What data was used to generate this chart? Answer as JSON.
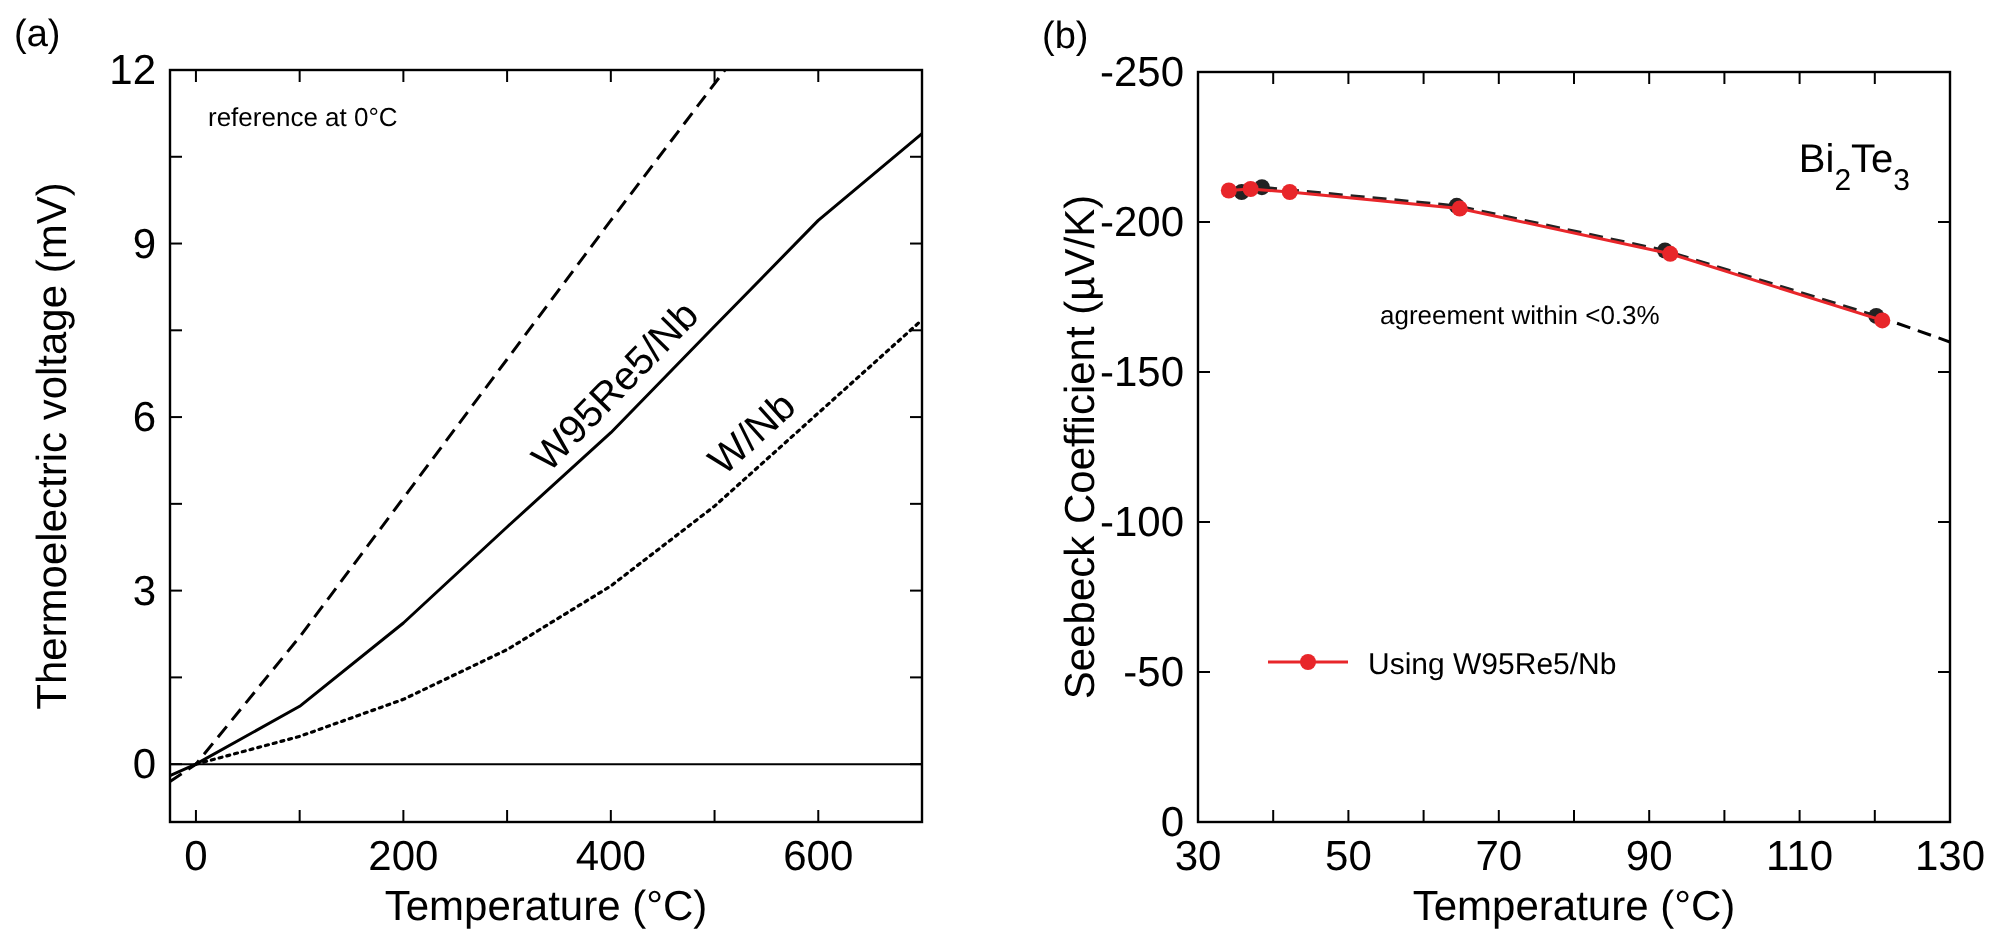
{
  "chart_data": [
    {
      "type": "line",
      "title": "(a)",
      "xlabel": "Temperature (°C)",
      "ylabel": "Thermoelectric voltage (mV)",
      "xlim": [
        -25,
        700
      ],
      "ylim": [
        -1,
        12
      ],
      "xticks": [
        0,
        {
          "value": 100,
          "label": null
        },
        200,
        {
          "value": 300,
          "label": null
        },
        400,
        {
          "value": 500,
          "label": null
        },
        600
      ],
      "yticks": [
        0,
        {
          "value": 1.5,
          "label": null
        },
        3,
        {
          "value": 4.5,
          "label": null
        },
        6,
        {
          "value": 7.5,
          "label": null
        },
        9,
        {
          "value": 10.5,
          "label": null
        },
        12
      ],
      "annotations": [
        "reference at 0°C"
      ],
      "ref_lines": [
        {
          "axis": "y",
          "value": 0,
          "color": "#000000",
          "line_style": "solid"
        }
      ],
      "series": [
        {
          "color": "#000000",
          "line_style": "dashed",
          "marker": "none",
          "x": [
            -25,
            0,
            100,
            200,
            300,
            400,
            510
          ],
          "values": [
            -0.3,
            0,
            2.2,
            4.6,
            7.0,
            9.4,
            12
          ]
        },
        {
          "name": "W95Re5/Nb",
          "color": "#000000",
          "line_style": "solid",
          "marker": "none",
          "x": [
            -25,
            0,
            100,
            200,
            300,
            400,
            500,
            600,
            700
          ],
          "values": [
            -0.2,
            0,
            1.0,
            2.44,
            4.1,
            5.73,
            7.57,
            9.4,
            10.9
          ]
        },
        {
          "name": "W/Nb",
          "color": "#000000",
          "line_style": "dotted",
          "marker": "none",
          "x": [
            0,
            100,
            200,
            300,
            400,
            500,
            600,
            700
          ],
          "values": [
            0,
            0.48,
            1.12,
            1.98,
            3.08,
            4.46,
            6.07,
            7.68
          ]
        }
      ]
    },
    {
      "type": "line",
      "title": "(b)",
      "xlabel": "Temperature (°C)",
      "ylabel": "Seebeck Coefficient (µV/K)",
      "xlim": [
        30,
        130
      ],
      "ylim": [
        0,
        -250
      ],
      "xticks": [
        30,
        {
          "value": 40,
          "label": null
        },
        50,
        {
          "value": 60,
          "label": null
        },
        70,
        {
          "value": 80,
          "label": null
        },
        90,
        {
          "value": 100,
          "label": null
        },
        110,
        {
          "value": 120,
          "label": null
        },
        130
      ],
      "yticks": [
        0,
        -50,
        -100,
        -150,
        -200,
        -250
      ],
      "annotations": [
        "Bi$_{2}$Te$_{3}$",
        "agreement within <0.3%"
      ],
      "legend": "bottom left",
      "series": [
        {
          "color": "#000000",
          "line_style": "dashed",
          "marker": "none",
          "x": [
            120.2,
            130
          ],
          "values": [
            -168.7,
            -160
          ]
        },
        {
          "color": "#222222",
          "line_style": "dashed",
          "marker": "circle",
          "x": [
            35.8,
            38.5,
            64.4,
            92.1,
            120.2
          ],
          "values": [
            -210,
            -211.6,
            -205.4,
            -190.5,
            -168.7
          ]
        },
        {
          "name": "Using W95Re5/Nb",
          "color": "#e8262a",
          "line_style": "solid",
          "marker": "circle",
          "x": [
            34.1,
            37.0,
            42.2,
            64.8,
            92.8,
            121
          ],
          "values": [
            -210.5,
            -211,
            -210,
            -204.5,
            -189.4,
            -167.2
          ]
        }
      ]
    }
  ]
}
